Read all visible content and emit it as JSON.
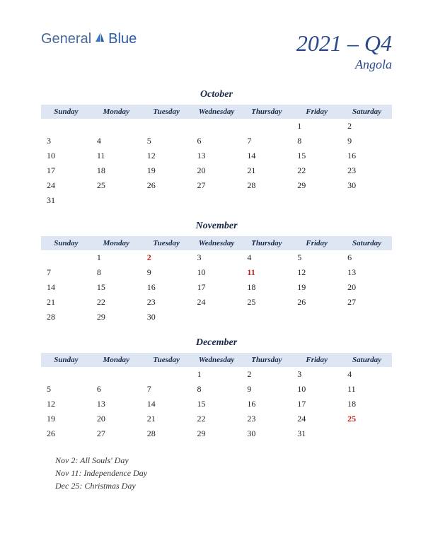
{
  "logo": {
    "part1": "General",
    "part2": "Blue"
  },
  "title": {
    "main": "2021 – Q4",
    "sub": "Angola"
  },
  "dayHeaders": [
    "Sunday",
    "Monday",
    "Tuesday",
    "Wednesday",
    "Thursday",
    "Friday",
    "Saturday"
  ],
  "months": [
    {
      "name": "October",
      "weeks": [
        [
          "",
          "",
          "",
          "",
          "",
          "1",
          "2"
        ],
        [
          "3",
          "4",
          "5",
          "6",
          "7",
          "8",
          "9"
        ],
        [
          "10",
          "11",
          "12",
          "13",
          "14",
          "15",
          "16"
        ],
        [
          "17",
          "18",
          "19",
          "20",
          "21",
          "22",
          "23"
        ],
        [
          "24",
          "25",
          "26",
          "27",
          "28",
          "29",
          "30"
        ],
        [
          "31",
          "",
          "",
          "",
          "",
          "",
          ""
        ]
      ],
      "holidays": []
    },
    {
      "name": "November",
      "weeks": [
        [
          "",
          "1",
          "2",
          "3",
          "4",
          "5",
          "6"
        ],
        [
          "7",
          "8",
          "9",
          "10",
          "11",
          "12",
          "13"
        ],
        [
          "14",
          "15",
          "16",
          "17",
          "18",
          "19",
          "20"
        ],
        [
          "21",
          "22",
          "23",
          "24",
          "25",
          "26",
          "27"
        ],
        [
          "28",
          "29",
          "30",
          "",
          "",
          "",
          ""
        ]
      ],
      "holidays": [
        "2",
        "11"
      ]
    },
    {
      "name": "December",
      "weeks": [
        [
          "",
          "",
          "",
          "1",
          "2",
          "3",
          "4"
        ],
        [
          "5",
          "6",
          "7",
          "8",
          "9",
          "10",
          "11"
        ],
        [
          "12",
          "13",
          "14",
          "15",
          "16",
          "17",
          "18"
        ],
        [
          "19",
          "20",
          "21",
          "22",
          "23",
          "24",
          "25"
        ],
        [
          "26",
          "27",
          "28",
          "29",
          "30",
          "31",
          ""
        ]
      ],
      "holidays": [
        "25"
      ]
    }
  ],
  "holidayList": [
    "Nov 2: All Souls' Day",
    "Nov 11: Independence Day",
    "Dec 25: Christmas Day"
  ],
  "colors": {
    "headerBg": "#dde6f2",
    "titleColor": "#2a4a8a",
    "holidayColor": "#c02020",
    "textColor": "#222222"
  }
}
